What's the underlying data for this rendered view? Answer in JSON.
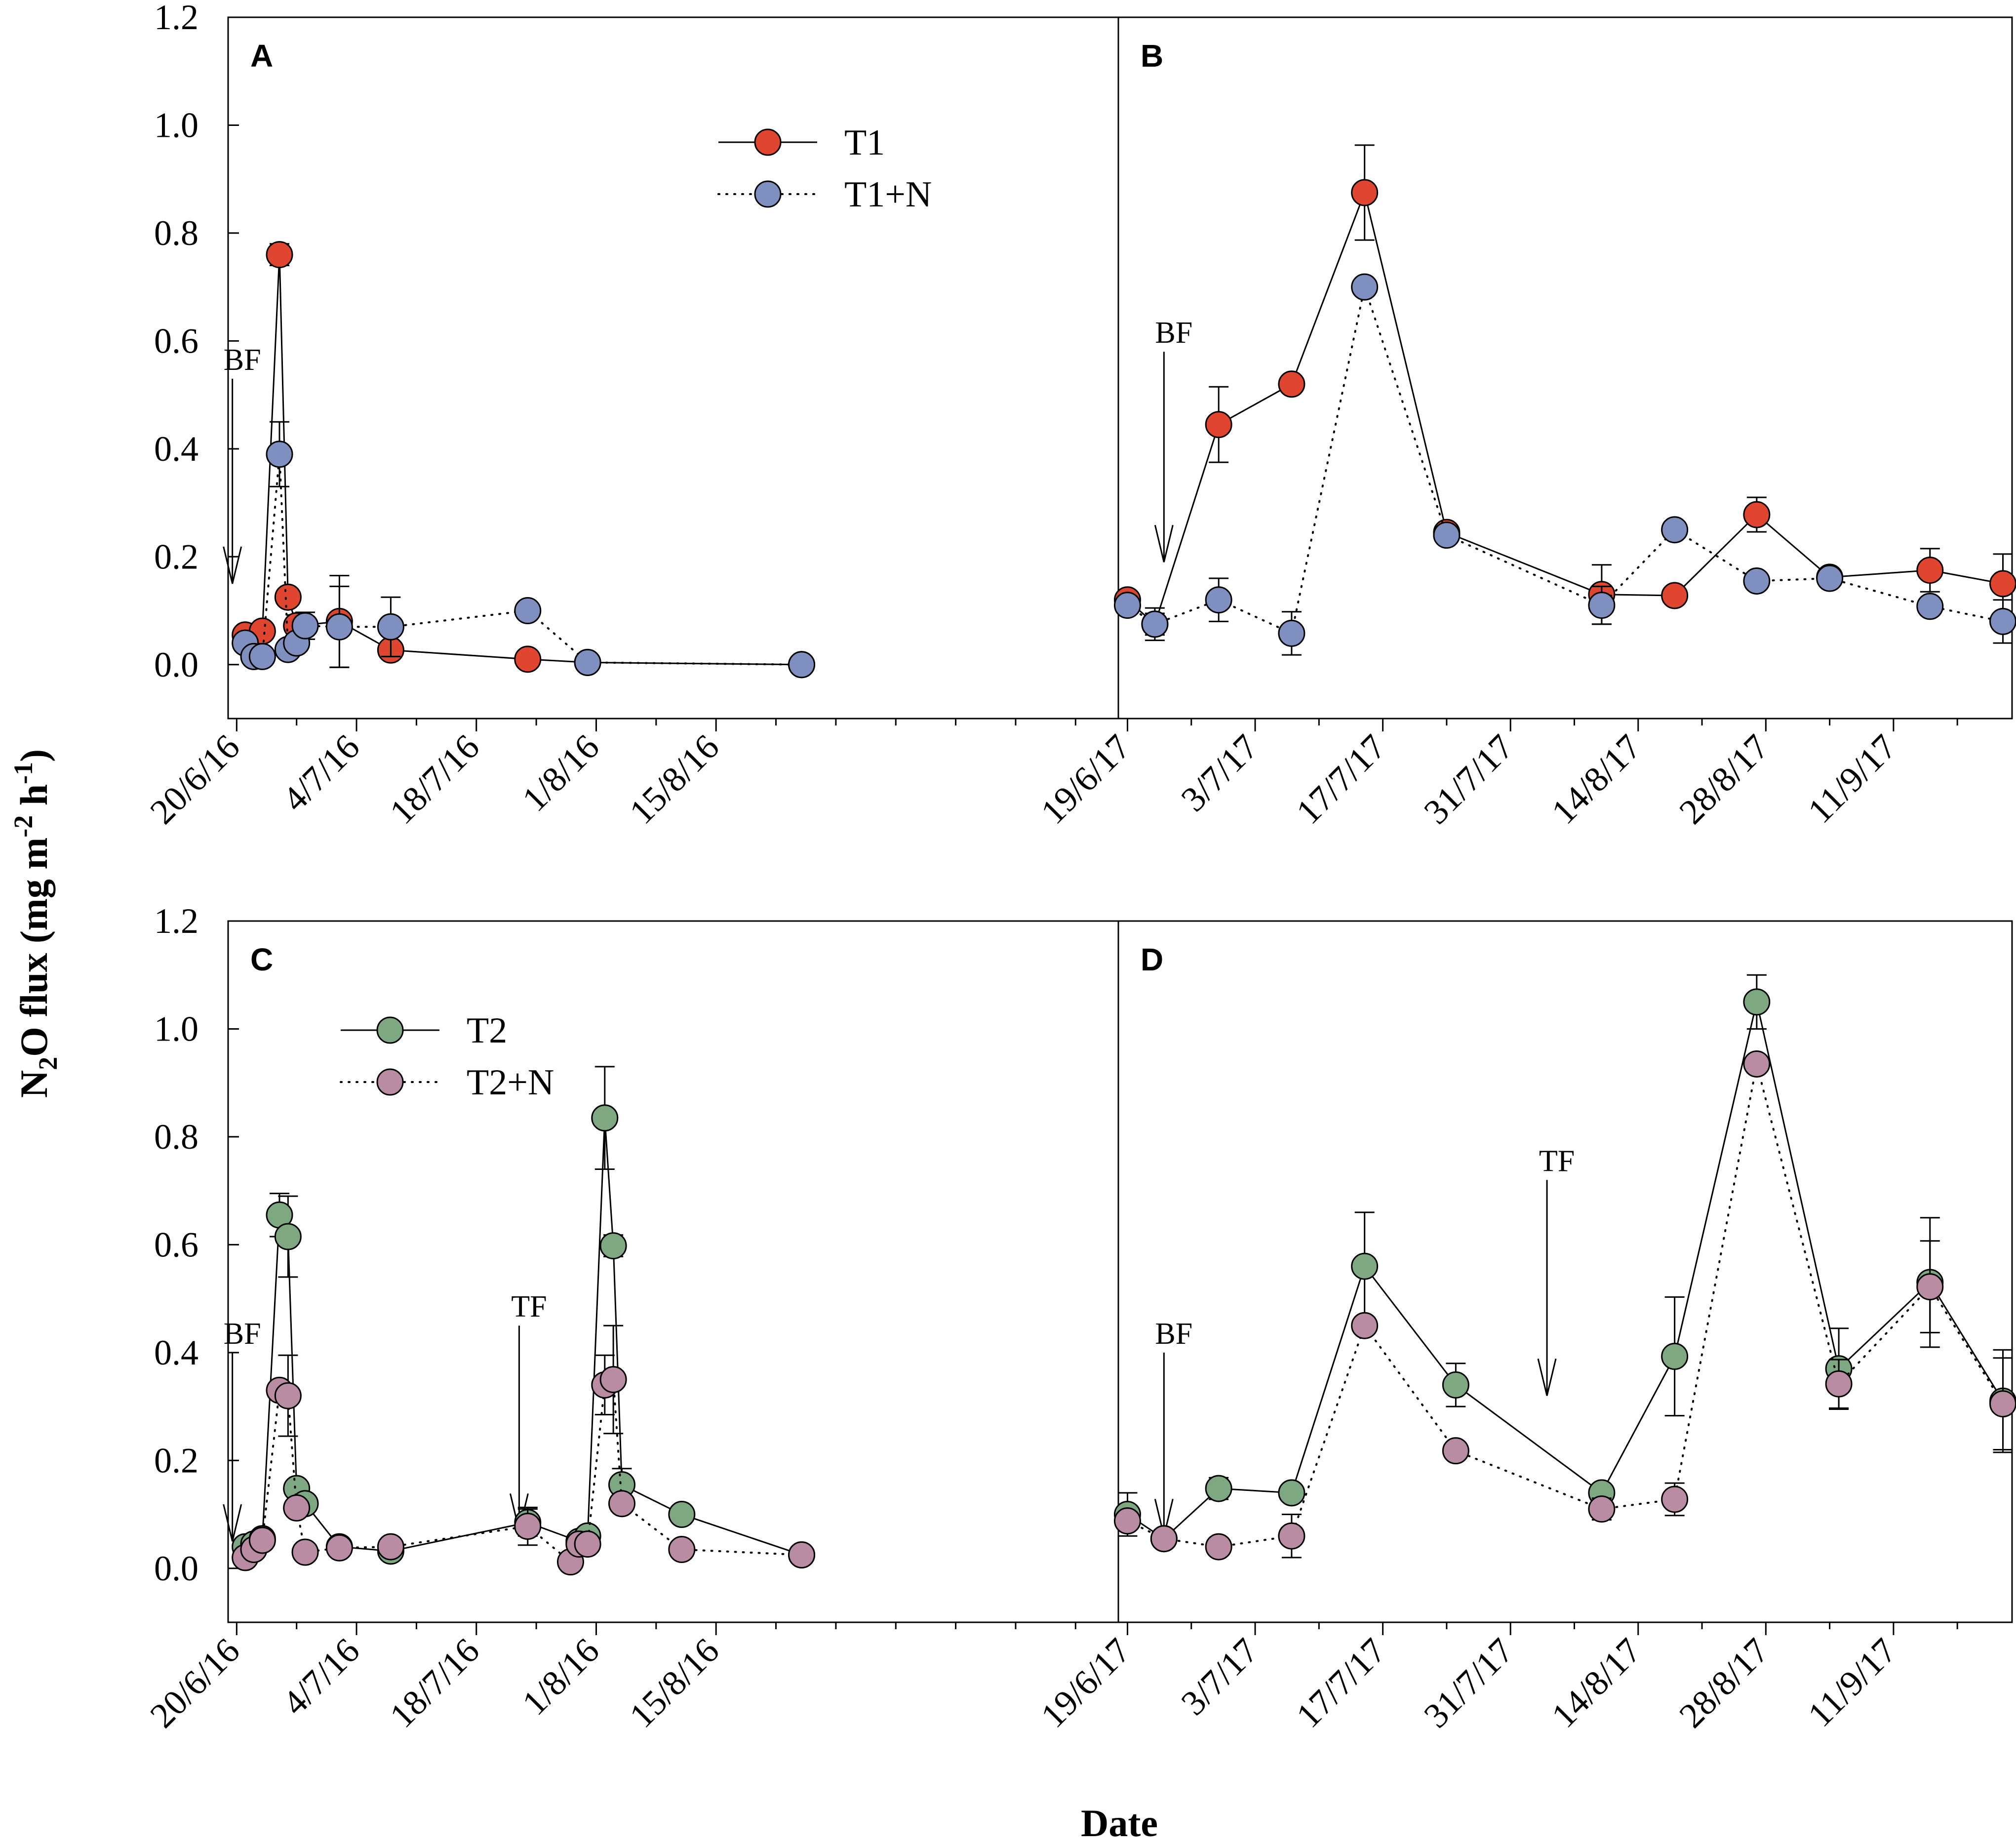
{
  "figure": {
    "ylabel_main": "N",
    "ylabel_sub": "2",
    "ylabel_rest": "O flux (mg m",
    "ylabel_sup1": "-2",
    "ylabel_h": " h",
    "ylabel_sup2": "-1",
    "ylabel_close": ")",
    "xlabel": "Date"
  },
  "chart_data": [
    {
      "type": "scatter",
      "panel": "A",
      "ylim": [
        -0.1,
        1.2
      ],
      "yticks": [
        "0.0",
        "0.2",
        "0.4",
        "0.6",
        "0.8",
        "1.0",
        "1.2"
      ],
      "xlim": [
        -1,
        103
      ],
      "xticks": [
        {
          "label": "20/6/16",
          "x": 0
        },
        {
          "label": "4/7/16",
          "x": 14
        },
        {
          "label": "18/7/16",
          "x": 28
        },
        {
          "label": "1/8/16",
          "x": 42
        },
        {
          "label": "15/8/16",
          "x": 56
        }
      ],
      "legend": [
        {
          "name": "T1",
          "style": "solid",
          "color": "#e0462f"
        },
        {
          "name": "T1+N",
          "style": "dotted",
          "color": "#7f8fbf"
        }
      ],
      "annotations": [
        {
          "text": "BF",
          "x": -0.5,
          "y_top": 0.53,
          "y_tip": 0.15
        }
      ],
      "series": [
        {
          "name": "T1",
          "color": "#e0462f",
          "style": "solid",
          "points": [
            {
              "x": 1,
              "y": 0.055,
              "err": 0
            },
            {
              "x": 3,
              "y": 0.062,
              "err": 0
            },
            {
              "x": 5,
              "y": 0.76,
              "err": 0.02
            },
            {
              "x": 6,
              "y": 0.125,
              "err": 0
            },
            {
              "x": 7,
              "y": 0.072,
              "err": 0.02
            },
            {
              "x": 12,
              "y": 0.08,
              "err": 0.085
            },
            {
              "x": 18,
              "y": 0.027,
              "err": 0.01
            },
            {
              "x": 34,
              "y": 0.01,
              "err": 0
            },
            {
              "x": 41,
              "y": 0.004,
              "err": 0
            },
            {
              "x": 66,
              "y": 0.0,
              "err": 0
            }
          ]
        },
        {
          "name": "T1+N",
          "color": "#7f8fbf",
          "style": "dotted",
          "points": [
            {
              "x": 1,
              "y": 0.04,
              "err": 0
            },
            {
              "x": 2,
              "y": 0.015,
              "err": 0
            },
            {
              "x": 3,
              "y": 0.015,
              "err": 0
            },
            {
              "x": 5,
              "y": 0.39,
              "err": 0.06
            },
            {
              "x": 6,
              "y": 0.028,
              "err": 0
            },
            {
              "x": 7,
              "y": 0.04,
              "err": 0
            },
            {
              "x": 8,
              "y": 0.072,
              "err": 0.025
            },
            {
              "x": 12,
              "y": 0.07,
              "err": 0.075
            },
            {
              "x": 18,
              "y": 0.07,
              "err": 0.055
            },
            {
              "x": 34,
              "y": 0.1,
              "err": 0
            },
            {
              "x": 41,
              "y": 0.004,
              "err": 0
            },
            {
              "x": 66,
              "y": 0.0,
              "err": 0
            }
          ]
        }
      ]
    },
    {
      "type": "scatter",
      "panel": "B",
      "ylim": [
        -0.1,
        1.2
      ],
      "xlim": [
        -1,
        97
      ],
      "xticks": [
        {
          "label": "19/6/17",
          "x": 0
        },
        {
          "label": "3/7/17",
          "x": 14
        },
        {
          "label": "17/7/17",
          "x": 28
        },
        {
          "label": "31/7/17",
          "x": 42
        },
        {
          "label": "14/8/17",
          "x": 56
        },
        {
          "label": "28/8/17",
          "x": 70
        },
        {
          "label": "11/9/17",
          "x": 84
        }
      ],
      "annotations": [
        {
          "text": "BF",
          "x": 4,
          "y_top": 0.58,
          "y_tip": 0.19
        }
      ],
      "series": [
        {
          "name": "T1",
          "color": "#e0462f",
          "style": "solid",
          "points": [
            {
              "x": 0,
              "y": 0.12,
              "err": 0
            },
            {
              "x": 3,
              "y": 0.075,
              "err": 0.02
            },
            {
              "x": 10,
              "y": 0.445,
              "err": 0.07
            },
            {
              "x": 18,
              "y": 0.52,
              "err": 0
            },
            {
              "x": 26,
              "y": 0.875,
              "err": 0.088
            },
            {
              "x": 35,
              "y": 0.245,
              "err": 0.01
            },
            {
              "x": 52,
              "y": 0.13,
              "err": 0.055
            },
            {
              "x": 60,
              "y": 0.128,
              "err": 0
            },
            {
              "x": 69,
              "y": 0.278,
              "err": 0.032
            },
            {
              "x": 77,
              "y": 0.162,
              "err": 0
            },
            {
              "x": 88,
              "y": 0.175,
              "err": 0.04
            },
            {
              "x": 96,
              "y": 0.15,
              "err": 0.055
            }
          ]
        },
        {
          "name": "T1+N",
          "color": "#7f8fbf",
          "style": "dotted",
          "points": [
            {
              "x": 0,
              "y": 0.11,
              "err": 0
            },
            {
              "x": 3,
              "y": 0.075,
              "err": 0.03
            },
            {
              "x": 10,
              "y": 0.12,
              "err": 0.04
            },
            {
              "x": 18,
              "y": 0.058,
              "err": 0.04
            },
            {
              "x": 26,
              "y": 0.7,
              "err": 0
            },
            {
              "x": 35,
              "y": 0.24,
              "err": 0
            },
            {
              "x": 52,
              "y": 0.11,
              "err": 0.035
            },
            {
              "x": 60,
              "y": 0.25,
              "err": 0
            },
            {
              "x": 69,
              "y": 0.155,
              "err": 0
            },
            {
              "x": 77,
              "y": 0.16,
              "err": 0
            },
            {
              "x": 88,
              "y": 0.108,
              "err": 0
            },
            {
              "x": 96,
              "y": 0.08,
              "err": 0.04
            }
          ]
        }
      ]
    },
    {
      "type": "scatter",
      "panel": "C",
      "ylim": [
        -0.1,
        1.2
      ],
      "yticks": [
        "0.0",
        "0.2",
        "0.4",
        "0.6",
        "0.8",
        "1.0",
        "1.2"
      ],
      "xlim": [
        -1,
        103
      ],
      "xticks": [
        {
          "label": "20/6/16",
          "x": 0
        },
        {
          "label": "4/7/16",
          "x": 14
        },
        {
          "label": "18/7/16",
          "x": 28
        },
        {
          "label": "1/8/16",
          "x": 42
        },
        {
          "label": "15/8/16",
          "x": 56
        }
      ],
      "legend": [
        {
          "name": "T2",
          "style": "solid",
          "color": "#7ea882"
        },
        {
          "name": "T2+N",
          "style": "dotted",
          "color": "#b98ca3"
        }
      ],
      "annotations": [
        {
          "text": "BF",
          "x": -0.5,
          "y_top": 0.4,
          "y_tip": 0.05
        },
        {
          "text": "TF",
          "x": 33,
          "y_top": 0.45,
          "y_tip": 0.07
        }
      ],
      "series": [
        {
          "name": "T2",
          "color": "#7ea882",
          "style": "solid",
          "points": [
            {
              "x": 1,
              "y": 0.04,
              "err": 0
            },
            {
              "x": 2,
              "y": 0.045,
              "err": 0
            },
            {
              "x": 3,
              "y": 0.055,
              "err": 0
            },
            {
              "x": 5,
              "y": 0.655,
              "err": 0.04
            },
            {
              "x": 6,
              "y": 0.615,
              "err": 0.075
            },
            {
              "x": 7,
              "y": 0.148,
              "err": 0
            },
            {
              "x": 8,
              "y": 0.12,
              "err": 0
            },
            {
              "x": 12,
              "y": 0.04,
              "err": 0
            },
            {
              "x": 18,
              "y": 0.032,
              "err": 0
            },
            {
              "x": 34,
              "y": 0.085,
              "err": 0.025
            },
            {
              "x": 40,
              "y": 0.05,
              "err": 0
            },
            {
              "x": 41,
              "y": 0.06,
              "err": 0
            },
            {
              "x": 43,
              "y": 0.835,
              "err": 0.095
            },
            {
              "x": 44,
              "y": 0.598,
              "err": 0.02
            },
            {
              "x": 45,
              "y": 0.155,
              "err": 0.03
            },
            {
              "x": 52,
              "y": 0.1,
              "err": 0
            },
            {
              "x": 66,
              "y": 0.025,
              "err": 0
            }
          ]
        },
        {
          "name": "T2+N",
          "color": "#b98ca3",
          "style": "dotted",
          "points": [
            {
              "x": 1,
              "y": 0.02,
              "err": 0
            },
            {
              "x": 2,
              "y": 0.035,
              "err": 0
            },
            {
              "x": 3,
              "y": 0.052,
              "err": 0
            },
            {
              "x": 5,
              "y": 0.33,
              "err": 0
            },
            {
              "x": 6,
              "y": 0.32,
              "err": 0.075
            },
            {
              "x": 7,
              "y": 0.112,
              "err": 0
            },
            {
              "x": 8,
              "y": 0.03,
              "err": 0
            },
            {
              "x": 12,
              "y": 0.038,
              "err": 0
            },
            {
              "x": 18,
              "y": 0.04,
              "err": 0
            },
            {
              "x": 34,
              "y": 0.078,
              "err": 0.035
            },
            {
              "x": 39,
              "y": 0.012,
              "err": 0
            },
            {
              "x": 40,
              "y": 0.045,
              "err": 0
            },
            {
              "x": 41,
              "y": 0.045,
              "err": 0
            },
            {
              "x": 43,
              "y": 0.34,
              "err": 0.055
            },
            {
              "x": 44,
              "y": 0.35,
              "err": 0.1
            },
            {
              "x": 45,
              "y": 0.12,
              "err": 0
            },
            {
              "x": 52,
              "y": 0.035,
              "err": 0
            },
            {
              "x": 66,
              "y": 0.025,
              "err": 0
            }
          ]
        }
      ]
    },
    {
      "type": "scatter",
      "panel": "D",
      "ylim": [
        -0.1,
        1.2
      ],
      "xlim": [
        -1,
        97
      ],
      "xticks": [
        {
          "label": "19/6/17",
          "x": 0
        },
        {
          "label": "3/7/17",
          "x": 14
        },
        {
          "label": "17/7/17",
          "x": 28
        },
        {
          "label": "31/7/17",
          "x": 42
        },
        {
          "label": "14/8/17",
          "x": 56
        },
        {
          "label": "28/8/17",
          "x": 70
        },
        {
          "label": "11/9/17",
          "x": 84
        }
      ],
      "annotations": [
        {
          "text": "BF",
          "x": 4,
          "y_top": 0.4,
          "y_tip": 0.06
        },
        {
          "text": "TF",
          "x": 46,
          "y_top": 0.72,
          "y_tip": 0.32
        }
      ],
      "series": [
        {
          "name": "T2",
          "color": "#7ea882",
          "style": "solid",
          "points": [
            {
              "x": 0,
              "y": 0.1,
              "err": 0.04
            },
            {
              "x": 4,
              "y": 0.055,
              "err": 0
            },
            {
              "x": 10,
              "y": 0.148,
              "err": 0.02
            },
            {
              "x": 18,
              "y": 0.14,
              "err": 0
            },
            {
              "x": 26,
              "y": 0.56,
              "err": 0.1
            },
            {
              "x": 36,
              "y": 0.34,
              "err": 0.04
            },
            {
              "x": 52,
              "y": 0.14,
              "err": 0
            },
            {
              "x": 60,
              "y": 0.393,
              "err": 0.11
            },
            {
              "x": 69,
              "y": 1.05,
              "err": 0.05
            },
            {
              "x": 78,
              "y": 0.37,
              "err": 0.075
            },
            {
              "x": 88,
              "y": 0.53,
              "err": 0.12
            },
            {
              "x": 96,
              "y": 0.31,
              "err": 0.095
            }
          ]
        },
        {
          "name": "T2+N",
          "color": "#b98ca3",
          "style": "dotted",
          "points": [
            {
              "x": 0,
              "y": 0.088,
              "err": 0
            },
            {
              "x": 4,
              "y": 0.055,
              "err": 0
            },
            {
              "x": 10,
              "y": 0.04,
              "err": 0
            },
            {
              "x": 18,
              "y": 0.06,
              "err": 0.04
            },
            {
              "x": 26,
              "y": 0.45,
              "err": 0
            },
            {
              "x": 36,
              "y": 0.218,
              "err": 0
            },
            {
              "x": 52,
              "y": 0.11,
              "err": 0.02
            },
            {
              "x": 60,
              "y": 0.128,
              "err": 0.03
            },
            {
              "x": 69,
              "y": 0.935,
              "err": 0
            },
            {
              "x": 78,
              "y": 0.342,
              "err": 0.045
            },
            {
              "x": 88,
              "y": 0.522,
              "err": 0.085
            },
            {
              "x": 96,
              "y": 0.305,
              "err": 0.085
            }
          ]
        }
      ]
    }
  ]
}
